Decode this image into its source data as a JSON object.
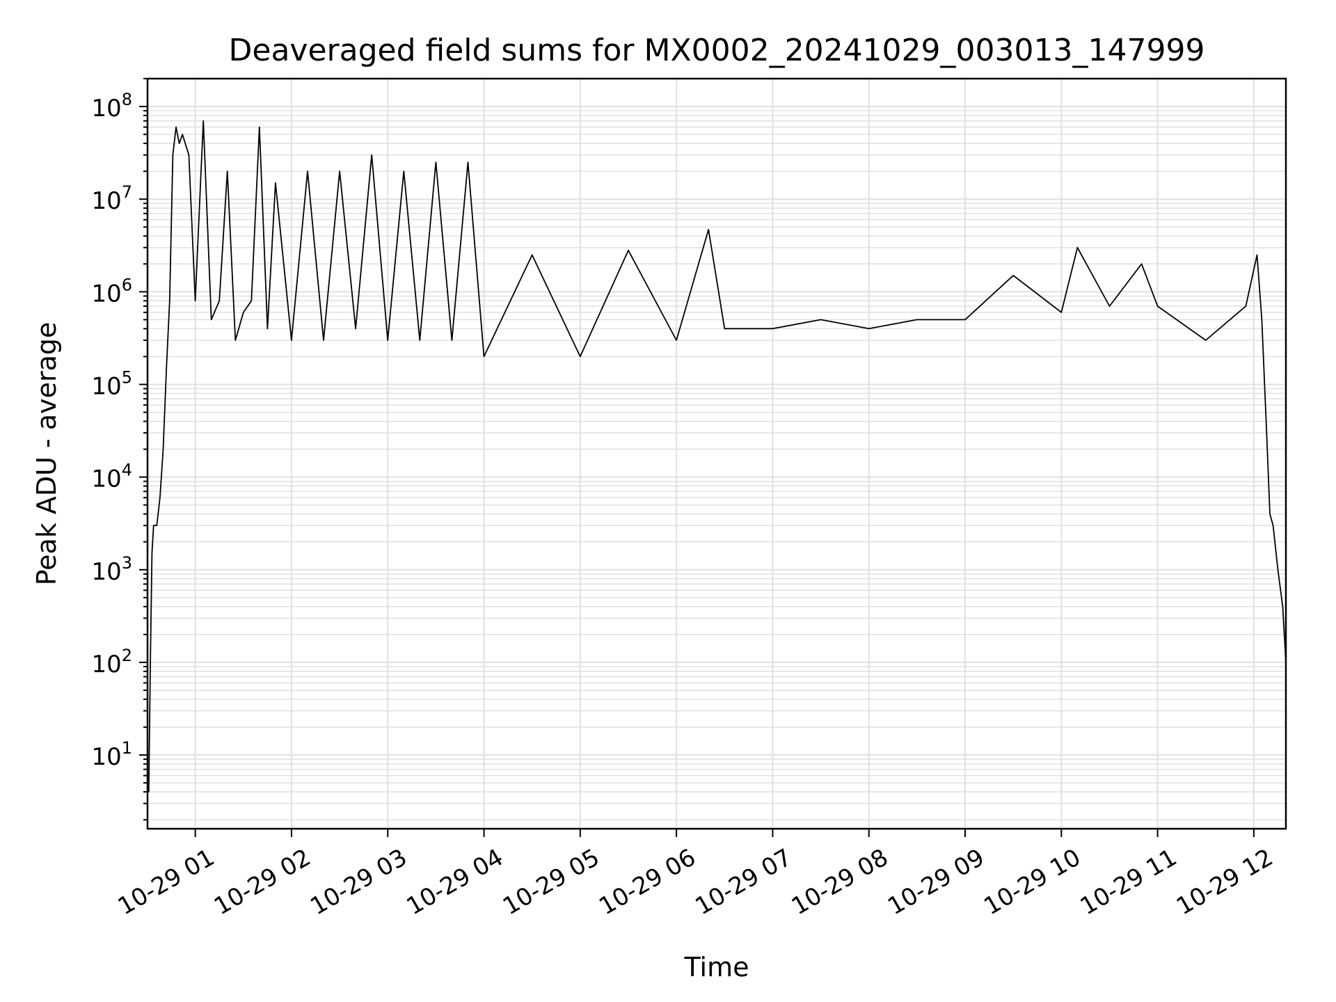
{
  "chart_data": {
    "type": "line",
    "title": "Deaveraged field sums for MX0002_20241029_003013_147999",
    "xlabel": "Time",
    "ylabel": "Peak ADU - average",
    "yscale": "log",
    "ylim": [
      1.6,
      200000000
    ],
    "xlim": [
      "2024-10-29T00:30:13",
      "2024-10-29T12:20:00"
    ],
    "x_tick_labels": [
      "10-29 01",
      "10-29 02",
      "10-29 03",
      "10-29 04",
      "10-29 05",
      "10-29 06",
      "10-29 07",
      "10-29 08",
      "10-29 09",
      "10-29 10",
      "10-29 11",
      "10-29 12"
    ],
    "x_tick_values": [
      "2024-10-29T01:00",
      "2024-10-29T02:00",
      "2024-10-29T03:00",
      "2024-10-29T04:00",
      "2024-10-29T05:00",
      "2024-10-29T06:00",
      "2024-10-29T07:00",
      "2024-10-29T08:00",
      "2024-10-29T09:00",
      "2024-10-29T10:00",
      "2024-10-29T11:00",
      "2024-10-29T12:00"
    ],
    "y_tick_labels": [
      {
        "base": "10",
        "exp": "1",
        "value": 10
      },
      {
        "base": "10",
        "exp": "2",
        "value": 100
      },
      {
        "base": "10",
        "exp": "3",
        "value": 1000
      },
      {
        "base": "10",
        "exp": "4",
        "value": 10000
      },
      {
        "base": "10",
        "exp": "5",
        "value": 100000
      },
      {
        "base": "10",
        "exp": "6",
        "value": 1000000
      },
      {
        "base": "10",
        "exp": "7",
        "value": 10000000
      },
      {
        "base": "10",
        "exp": "8",
        "value": 100000000
      }
    ],
    "grid": true,
    "line_color": "#000000",
    "grid_color": "#e0e0e0",
    "series": [
      {
        "x": [
          "2024-10-29T00:30:13",
          "2024-10-29T00:31:00",
          "2024-10-29T00:32:00",
          "2024-10-29T00:33:00",
          "2024-10-29T00:34:00",
          "2024-10-29T00:36:00",
          "2024-10-29T00:38:00",
          "2024-10-29T00:40:00",
          "2024-10-29T00:42:00",
          "2024-10-29T00:44:00",
          "2024-10-29T00:46:00",
          "2024-10-29T00:48:00",
          "2024-10-29T00:50:00",
          "2024-10-29T00:52:00",
          "2024-10-29T00:56:00",
          "2024-10-29T01:00:00",
          "2024-10-29T01:05:00",
          "2024-10-29T01:10:00",
          "2024-10-29T01:15:00",
          "2024-10-29T01:20:00",
          "2024-10-29T01:25:00",
          "2024-10-29T01:30:00",
          "2024-10-29T01:35:00",
          "2024-10-29T01:40:00",
          "2024-10-29T01:45:00",
          "2024-10-29T01:50:00",
          "2024-10-29T02:00:00",
          "2024-10-29T02:10:00",
          "2024-10-29T02:20:00",
          "2024-10-29T02:30:00",
          "2024-10-29T02:40:00",
          "2024-10-29T02:50:00",
          "2024-10-29T03:00:00",
          "2024-10-29T03:10:00",
          "2024-10-29T03:20:00",
          "2024-10-29T03:30:00",
          "2024-10-29T03:40:00",
          "2024-10-29T03:50:00",
          "2024-10-29T04:00:00",
          "2024-10-29T04:30:00",
          "2024-10-29T05:00:00",
          "2024-10-29T05:30:00",
          "2024-10-29T06:00:00",
          "2024-10-29T06:20:00",
          "2024-10-29T06:30:00",
          "2024-10-29T07:00:00",
          "2024-10-29T07:30:00",
          "2024-10-29T08:00:00",
          "2024-10-29T08:30:00",
          "2024-10-29T09:00:00",
          "2024-10-29T09:30:00",
          "2024-10-29T10:00:00",
          "2024-10-29T10:10:00",
          "2024-10-29T10:30:00",
          "2024-10-29T10:50:00",
          "2024-10-29T11:00:00",
          "2024-10-29T11:30:00",
          "2024-10-29T11:55:00",
          "2024-10-29T12:02:00",
          "2024-10-29T12:05:00",
          "2024-10-29T12:08:00",
          "2024-10-29T12:10:00",
          "2024-10-29T12:12:00",
          "2024-10-29T12:15:00",
          "2024-10-29T12:18:00",
          "2024-10-29T12:20:00"
        ],
        "y": [
          4,
          4,
          100,
          1500,
          3000,
          3000,
          6000,
          20000,
          150000,
          800000,
          30000000,
          60000000,
          40000000,
          50000000,
          30000000,
          800000,
          70000000,
          500000,
          800000,
          20000000,
          300000,
          600000,
          800000,
          60000000,
          400000,
          15000000,
          300000,
          20000000,
          300000,
          20000000,
          400000,
          30000000,
          300000,
          20000000,
          300000,
          25000000,
          300000,
          25000000,
          200000,
          2500000,
          200000,
          2800000,
          300000,
          4700000,
          400000,
          400000,
          500000,
          400000,
          500000,
          500000,
          1500000,
          600000,
          3000000,
          700000,
          2000000,
          700000,
          300000,
          700000,
          2500000,
          500000,
          30000,
          4000,
          3000,
          1000,
          400,
          100
        ]
      }
    ]
  }
}
